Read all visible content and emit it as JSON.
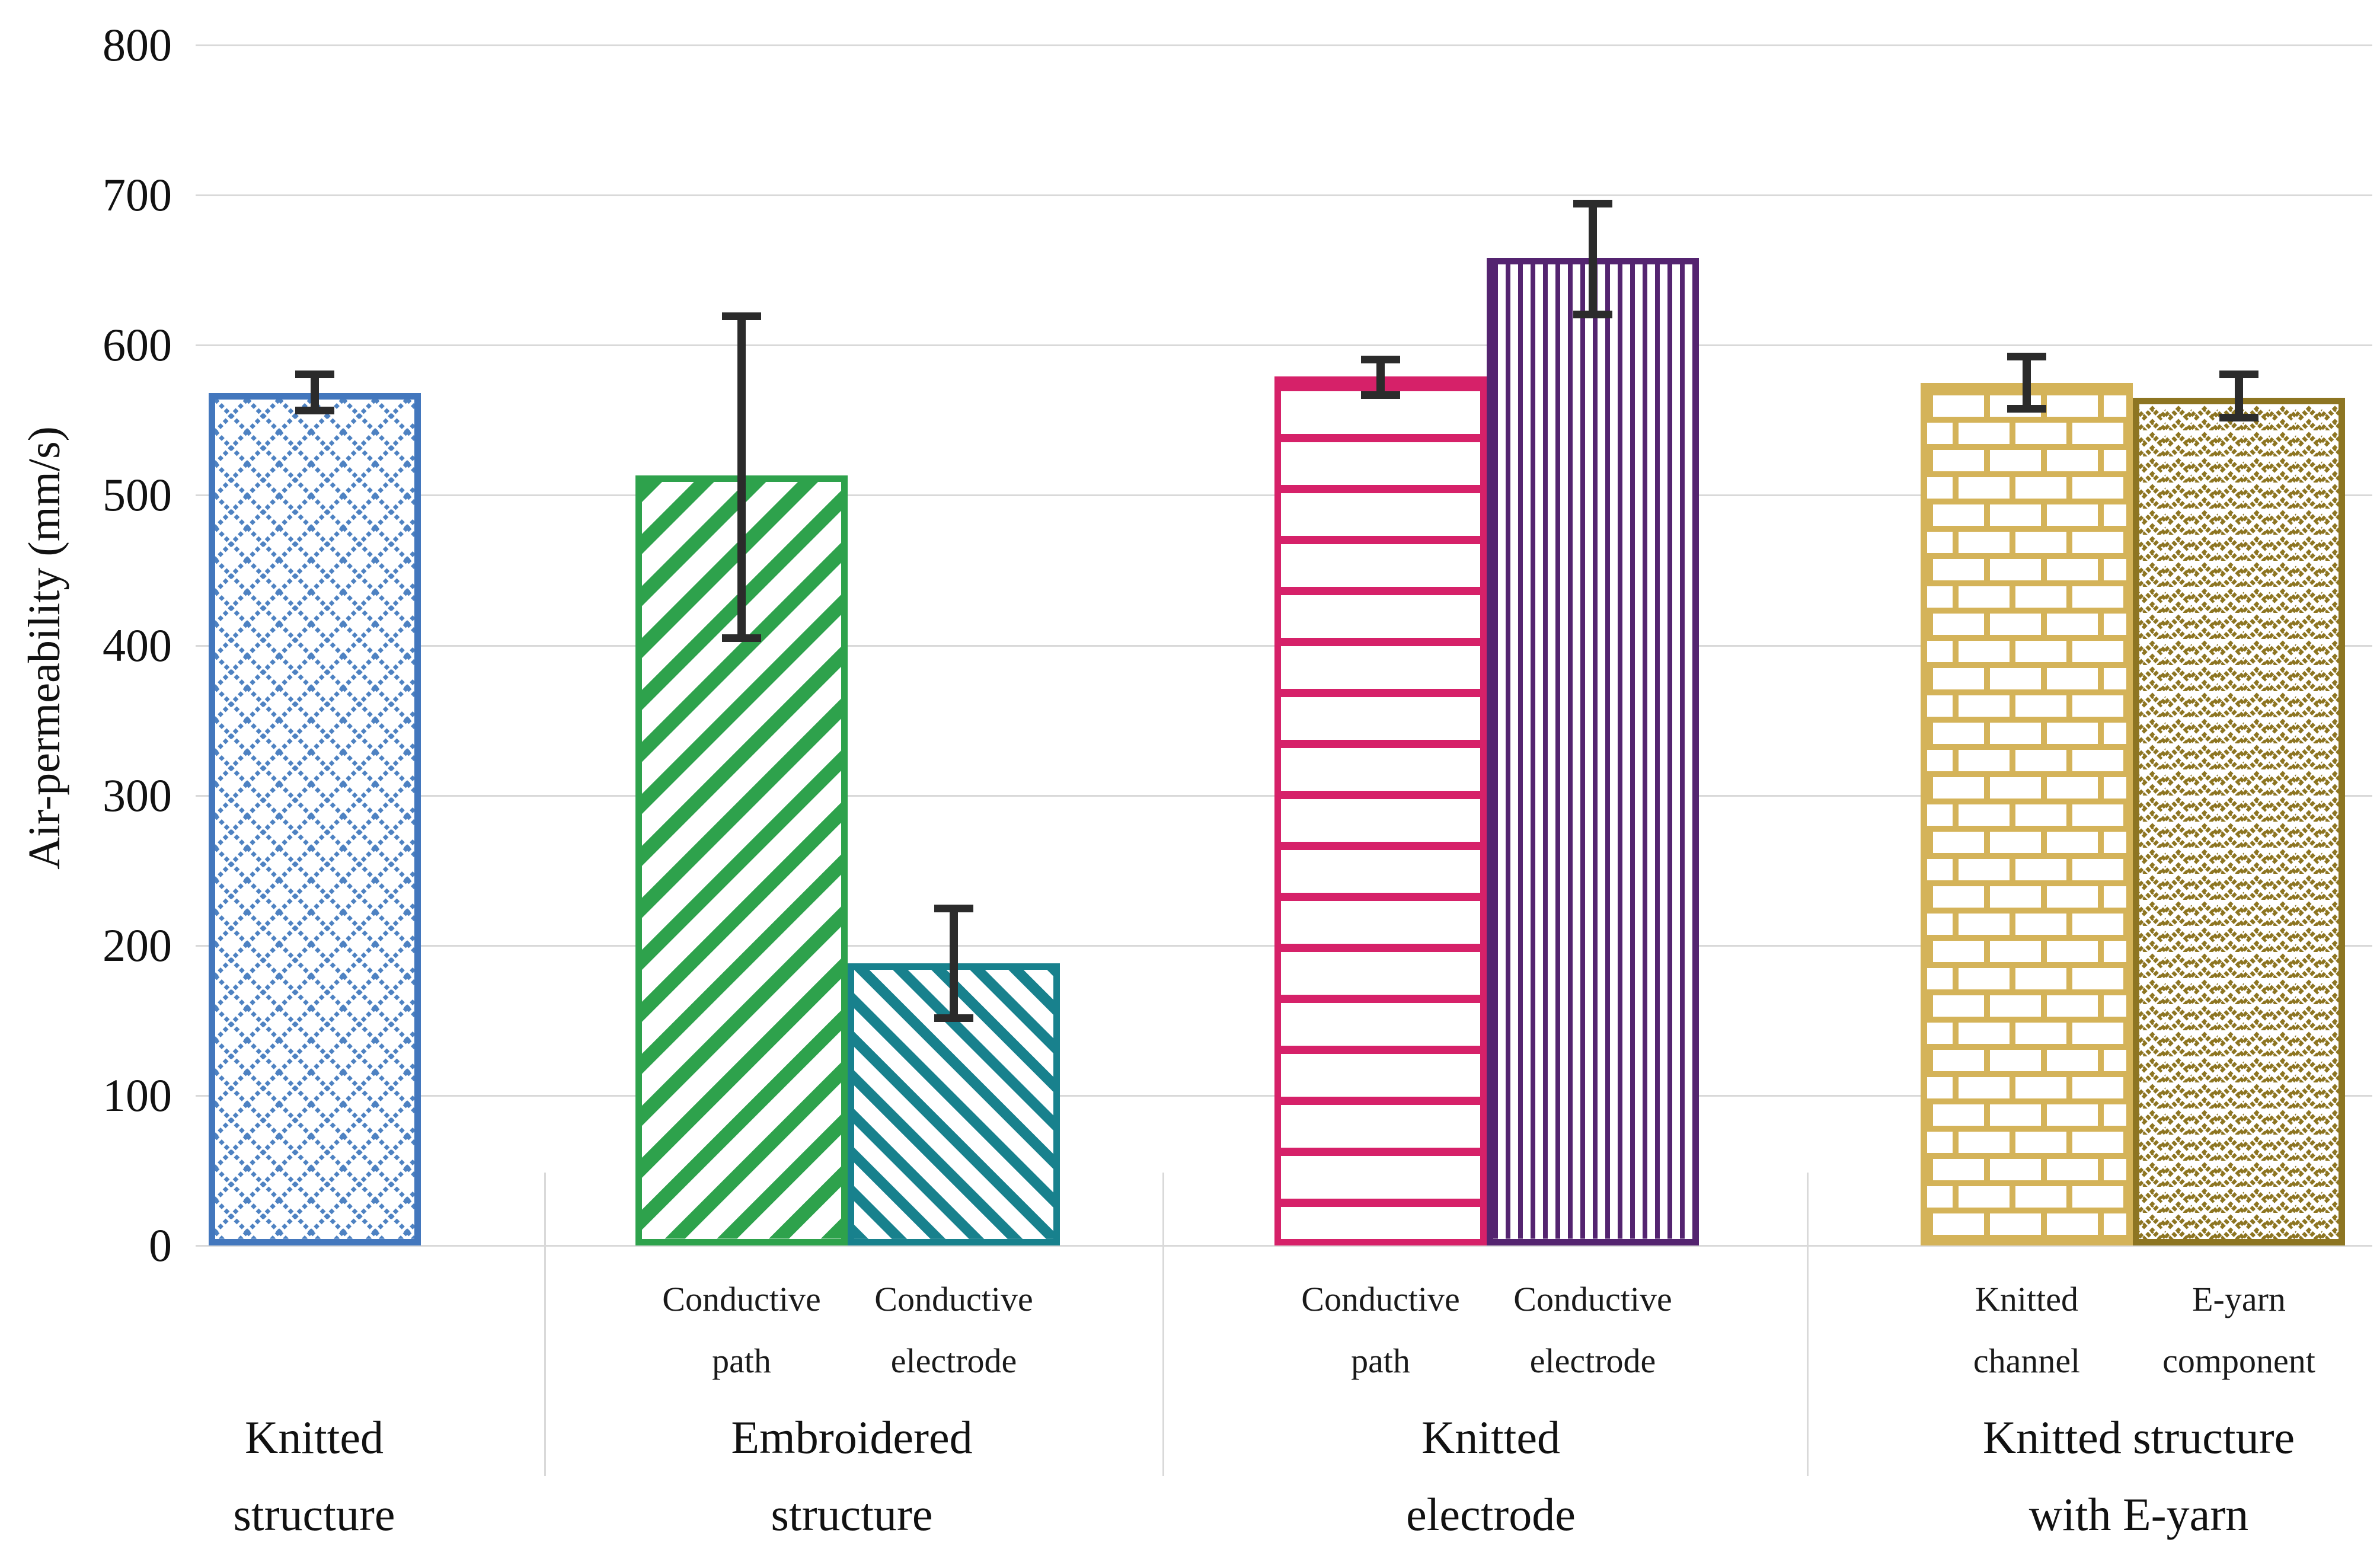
{
  "axis": {
    "ylabel": "Air-permeability (mm/s)",
    "yticks": [
      "800",
      "700",
      "600",
      "500",
      "400",
      "300",
      "200",
      "100",
      "0"
    ]
  },
  "chart_data": {
    "type": "bar",
    "title": "",
    "xlabel": "",
    "ylabel": "Air-permeability (mm/s)",
    "ylim": [
      0,
      800
    ],
    "ytick_interval": 100,
    "grid": true,
    "grid_color": "#d9d9d9",
    "error_bar_color": "#2b2b2b",
    "groups": [
      {
        "label_lines": [
          "Knitted",
          "structure"
        ],
        "bars": [
          {
            "sublabel_lines": [],
            "value": 568,
            "err_low": 554,
            "err_high": 583,
            "color": "#4377BD",
            "pattern": "diamond-crosshatch"
          }
        ]
      },
      {
        "label_lines": [
          "Embroidered",
          "structure"
        ],
        "bars": [
          {
            "sublabel_lines": [
              "Conductive",
              "path"
            ],
            "value": 513,
            "err_low": 402,
            "err_high": 622,
            "color": "#2EA24C",
            "pattern": "diagonal-up"
          },
          {
            "sublabel_lines": [
              "Conductive",
              "electrode"
            ],
            "value": 188,
            "err_low": 149,
            "err_high": 227,
            "color": "#18818D",
            "pattern": "diagonal-down"
          }
        ]
      },
      {
        "label_lines": [
          "Knitted",
          "electrode"
        ],
        "bars": [
          {
            "sublabel_lines": [
              "Conductive",
              "path"
            ],
            "value": 579,
            "err_low": 564,
            "err_high": 593,
            "color": "#D62169",
            "pattern": "horizontal"
          },
          {
            "sublabel_lines": [
              "Conductive",
              "electrode"
            ],
            "value": 658,
            "err_low": 618,
            "err_high": 697,
            "color": "#542470",
            "pattern": "vertical"
          }
        ]
      },
      {
        "label_lines": [
          "Knitted structure",
          "with E-yarn"
        ],
        "bars": [
          {
            "sublabel_lines": [
              "Knitted",
              "channel"
            ],
            "value": 575,
            "err_low": 555,
            "err_high": 595,
            "color": "#D4B359",
            "pattern": "brick"
          },
          {
            "sublabel_lines": [
              "E-yarn",
              "component"
            ],
            "value": 565,
            "err_low": 549,
            "err_high": 583,
            "color": "#8D7522",
            "pattern": "zigzag"
          }
        ]
      }
    ]
  }
}
